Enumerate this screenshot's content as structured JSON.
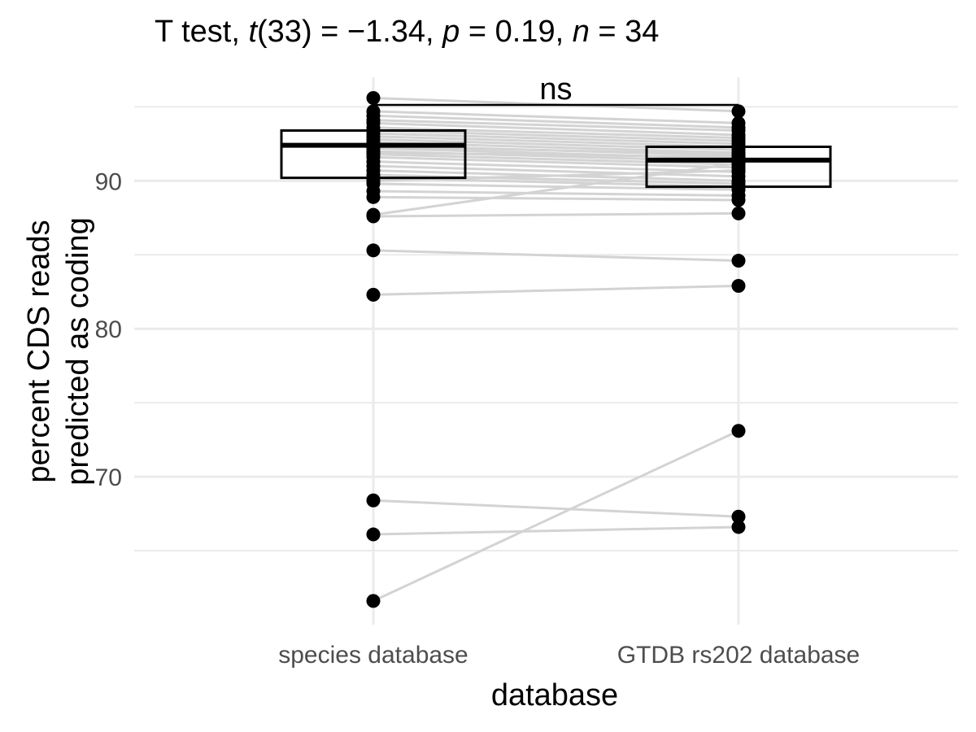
{
  "title": {
    "prefix": "T test, ",
    "t_sym": "t",
    "t_df": "(33) = −1.34, ",
    "p_sym": "p",
    "p_val": " = 0.19, ",
    "n_sym": "n",
    "n_val": " = 34"
  },
  "chart_data": {
    "type": "scatter",
    "subtype": "paired points with box plots",
    "xlabel": "database",
    "ylabel_lines": [
      "percent CDS reads",
      "predicted as coding"
    ],
    "categories": [
      "species database",
      "GTDB rs202 database"
    ],
    "ylim": [
      60,
      97
    ],
    "yticks": [
      70,
      80,
      90
    ],
    "grid": true,
    "significance_label": "ns",
    "pairs": [
      [
        95.6,
        94.7
      ],
      [
        94.7,
        93.9
      ],
      [
        94.4,
        93.6
      ],
      [
        94.1,
        93.4
      ],
      [
        93.9,
        93.1
      ],
      [
        93.6,
        92.9
      ],
      [
        93.4,
        92.7
      ],
      [
        93.2,
        92.5
      ],
      [
        93.0,
        92.3
      ],
      [
        92.8,
        92.1
      ],
      [
        92.6,
        91.9
      ],
      [
        92.4,
        91.7
      ],
      [
        92.2,
        91.5
      ],
      [
        92.0,
        91.3
      ],
      [
        91.8,
        91.1
      ],
      [
        91.6,
        90.9
      ],
      [
        91.3,
        90.6
      ],
      [
        91.0,
        90.3
      ],
      [
        90.7,
        90.0
      ],
      [
        90.4,
        89.8
      ],
      [
        90.2,
        89.6
      ],
      [
        90.0,
        90.7
      ],
      [
        89.8,
        89.4
      ],
      [
        89.3,
        89.0
      ],
      [
        88.9,
        88.7
      ],
      [
        87.7,
        91.2
      ],
      [
        87.6,
        87.8
      ],
      [
        85.3,
        84.6
      ],
      [
        82.3,
        82.9
      ],
      [
        68.4,
        67.3
      ],
      [
        66.1,
        66.6
      ],
      [
        61.6,
        73.1
      ],
      [
        92.3,
        91.8
      ],
      [
        91.9,
        91.6
      ]
    ],
    "boxes": [
      {
        "q1": 90.2,
        "median": 92.4,
        "q3": 93.4
      },
      {
        "q1": 89.6,
        "median": 91.4,
        "q3": 92.3
      }
    ],
    "colors": {
      "points": "#000000",
      "lines": "#d3d3d3",
      "grid": "#ebebeb",
      "box": "#000000"
    }
  }
}
